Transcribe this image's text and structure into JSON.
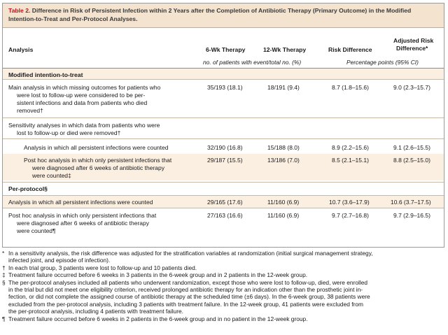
{
  "caption": {
    "label": "Table 2.",
    "line1": "Difference in Risk of Persistent Infection within 2 Years after the Completion of Antibiotic Therapy (Primary Outcome) in the Modified",
    "line2": "Intention-to-Treat and Per-Protocol Analyses."
  },
  "columns": {
    "analysis": "Analysis",
    "six_wk": "6-Wk Therapy",
    "twelve_wk": "12-Wk Therapy",
    "risk_diff": "Risk Difference",
    "adj_line1": "Adjusted Risk",
    "adj_line2": "Difference*",
    "units_left": "no. of patients with event/total no. (%)",
    "units_right": "Percentage points (95% CI)"
  },
  "sections": {
    "mitt": "Modified intention-to-treat",
    "pp": "Per-protocol§"
  },
  "rows": [
    {
      "lines": [
        "Main analysis in which missing outcomes for patients who",
        "were lost to follow-up were considered to be per-",
        "sistent infections and data from patients who died",
        "removed†"
      ],
      "six": "35/193 (18.1)",
      "twelve": "18/191 (9.4)",
      "rd": "8.7 (1.8–15.6)",
      "adj": "9.0 (2.3–15.7)"
    },
    {
      "lines": [
        "Sensitivity analyses in which data from patients who were",
        "lost to follow-up or died were removed†"
      ],
      "six": "",
      "twelve": "",
      "rd": "",
      "adj": ""
    },
    {
      "lines": [
        "Analysis in which all persistent infections were counted"
      ],
      "six": "32/190 (16.8)",
      "twelve": "15/188 (8.0)",
      "rd": "8.9 (2.2–15.6)",
      "adj": "9.1 (2.6–15.5)"
    },
    {
      "lines": [
        "Post hoc analysis in which only persistent infections that",
        "were diagnosed after 6 weeks of antibiotic therapy",
        "were counted‡"
      ],
      "six": "29/187 (15.5)",
      "twelve": "13/186 (7.0)",
      "rd": "8.5 (2.1–15.1)",
      "adj": "8.8 (2.5–15.0)"
    },
    {
      "lines": [
        "Analysis in which all persistent infections were counted"
      ],
      "six": "29/165 (17.6)",
      "twelve": "11/160 (6.9)",
      "rd": "10.7 (3.6–17.9)",
      "adj": "10.6 (3.7–17.5)"
    },
    {
      "lines": [
        "Post hoc analysis in which only persistent infections that",
        "were diagnosed after 6 weeks of antibiotic therapy",
        "were counted¶"
      ],
      "six": "27/163 (16.6)",
      "twelve": "11/160 (6.9)",
      "rd": "9.7 (2.7–16.8)",
      "adj": "9.7 (2.9–16.5)"
    }
  ],
  "footnotes": [
    {
      "mark": "*",
      "lines": [
        "In a sensitivity analysis, the risk difference was adjusted for the stratification variables at randomization (initial surgical management strategy,",
        "infected joint, and episode of infection)."
      ]
    },
    {
      "mark": "†",
      "lines": [
        "In each trial group, 3 patients were lost to follow-up and 10 patients died."
      ]
    },
    {
      "mark": "‡",
      "lines": [
        "Treatment failure occurred before 6 weeks in 3 patients in the 6-week group and in 2 patients in the 12-week group."
      ]
    },
    {
      "mark": "§",
      "lines": [
        "The per-protocol analyses included all patients who underwent randomization, except those who were lost to follow-up, died, were enrolled",
        "in the trial but did not meet one eligibility criterion, received prolonged antibiotic therapy for an indication other than the prosthetic joint in-",
        "fection, or did not complete the assigned course of antibiotic therapy at the scheduled time (±6 days). In the 6-week group, 38 patients were",
        "excluded from the per-protocol analysis, including 3 patients with treatment failure. In the 12-week group, 41 patients were excluded from",
        "the per-protocol analysis, including 4 patients with treatment failure."
      ]
    },
    {
      "mark": "¶",
      "lines": [
        "Treatment failure occurred before 6 weeks in 2 patients in the 6-week group and in no patient in the 12-week group."
      ]
    }
  ]
}
